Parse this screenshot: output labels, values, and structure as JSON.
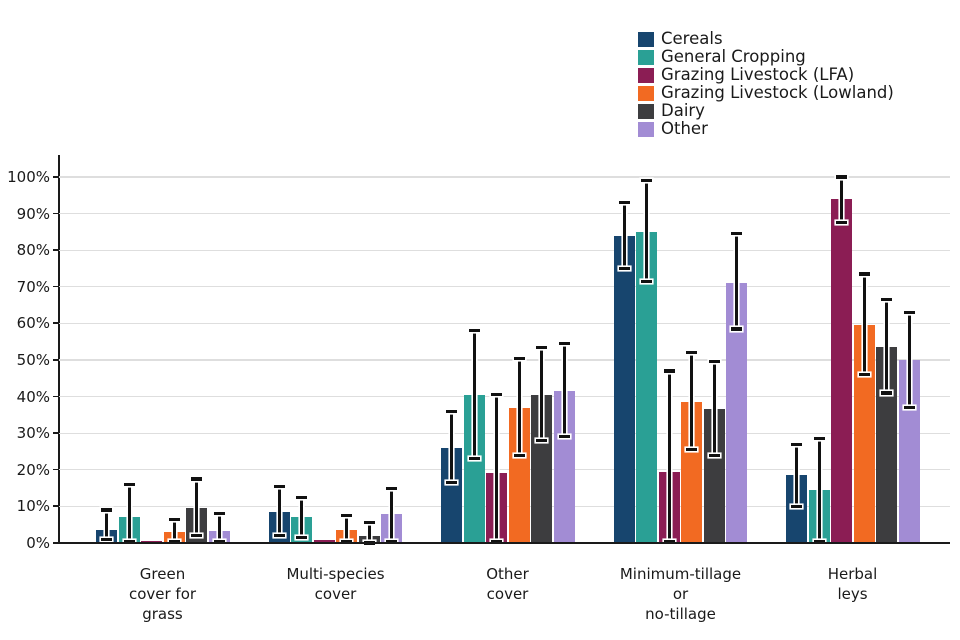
{
  "chart_data": {
    "type": "bar",
    "title": "",
    "xlabel": "",
    "ylabel": "",
    "ylim": [
      0,
      100
    ],
    "grid": "horizontal",
    "legend_position": "top-right",
    "y_tick_labels": [
      "0%",
      "10%",
      "20%",
      "30%",
      "40%",
      "50%",
      "60%",
      "70%",
      "80%",
      "90%",
      "100%"
    ],
    "categories": [
      "Green\ncover for\ngrass",
      "Multi-species\ncover",
      "Other\ncover",
      "Minimum-tillage\nor\nno-tillage",
      "Herbal\nleys"
    ],
    "series": [
      {
        "name": "Cereals",
        "color": "#17456e",
        "values": [
          3.5,
          8.5,
          26,
          84,
          18.5
        ],
        "err_low": [
          1,
          2,
          16.5,
          75,
          10
        ],
        "err_high": [
          9,
          15.5,
          36,
          93,
          27
        ]
      },
      {
        "name": "General Cropping",
        "color": "#2aa095",
        "values": [
          7,
          7,
          40.5,
          85,
          14.5
        ],
        "err_low": [
          0.5,
          1.5,
          23,
          71.5,
          0.5
        ],
        "err_high": [
          16,
          12.5,
          58,
          99,
          28.5
        ]
      },
      {
        "name": "Grazing Livestock (LFA)",
        "color": "#8b1d54",
        "values": [
          0.5,
          0.7,
          19,
          19.5,
          94
        ],
        "err_low": [
          null,
          null,
          0.5,
          0.5,
          87.5
        ],
        "err_high": [
          null,
          null,
          40.5,
          47,
          100
        ]
      },
      {
        "name": "Grazing Livestock (Lowland)",
        "color": "#f26a22",
        "values": [
          3,
          3.5,
          37,
          38.5,
          59.5
        ],
        "err_low": [
          0.5,
          0.5,
          24,
          25.5,
          46
        ],
        "err_high": [
          6.5,
          7.5,
          50.5,
          52,
          73.5
        ]
      },
      {
        "name": "Dairy",
        "color": "#3d3d3f",
        "values": [
          9.5,
          2,
          40.5,
          36.5,
          53.5
        ],
        "err_low": [
          2,
          0,
          28,
          24,
          41
        ],
        "err_high": [
          17.5,
          5.5,
          53.5,
          49.5,
          66.5
        ]
      },
      {
        "name": "Other",
        "color": "#a28cd4",
        "values": [
          3.3,
          8,
          41.5,
          71,
          50
        ],
        "err_low": [
          0.5,
          0.5,
          29,
          58.5,
          37
        ],
        "err_high": [
          8,
          15,
          54.5,
          84.5,
          63
        ]
      }
    ]
  }
}
